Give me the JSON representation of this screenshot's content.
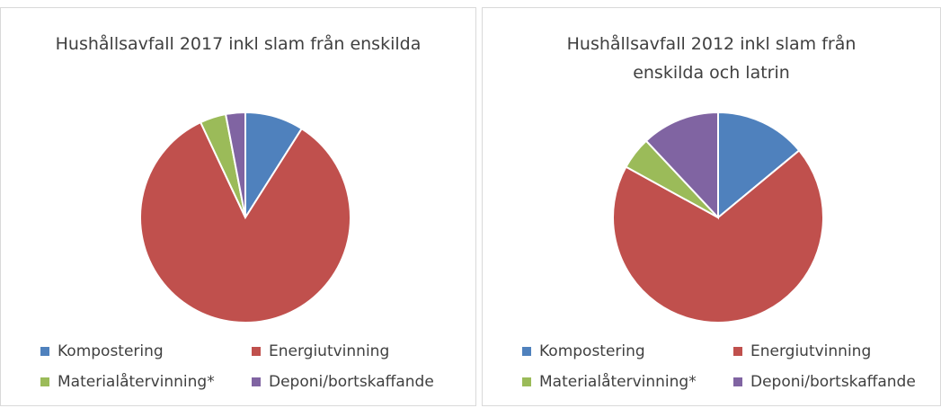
{
  "chart_data": [
    {
      "type": "pie",
      "title": "Hushållsavfall 2017 inkl slam från enskilda",
      "categories": [
        "Kompostering",
        "Energiutvinning",
        "Materialåtervinning*",
        "Deponi/bortskaffande"
      ],
      "values": [
        9,
        84,
        4,
        3
      ],
      "colors": [
        "#4f81bd",
        "#c0504d",
        "#9bbb59",
        "#8064a2"
      ]
    },
    {
      "type": "pie",
      "title": "Hushållsavfall 2012 inkl slam från enskilda och latrin",
      "categories": [
        "Kompostering",
        "Energiutvinning",
        "Materialåtervinning*",
        "Deponi/bortskaffande"
      ],
      "values": [
        14,
        69,
        5,
        12
      ],
      "colors": [
        "#4f81bd",
        "#c0504d",
        "#9bbb59",
        "#8064a2"
      ]
    }
  ]
}
